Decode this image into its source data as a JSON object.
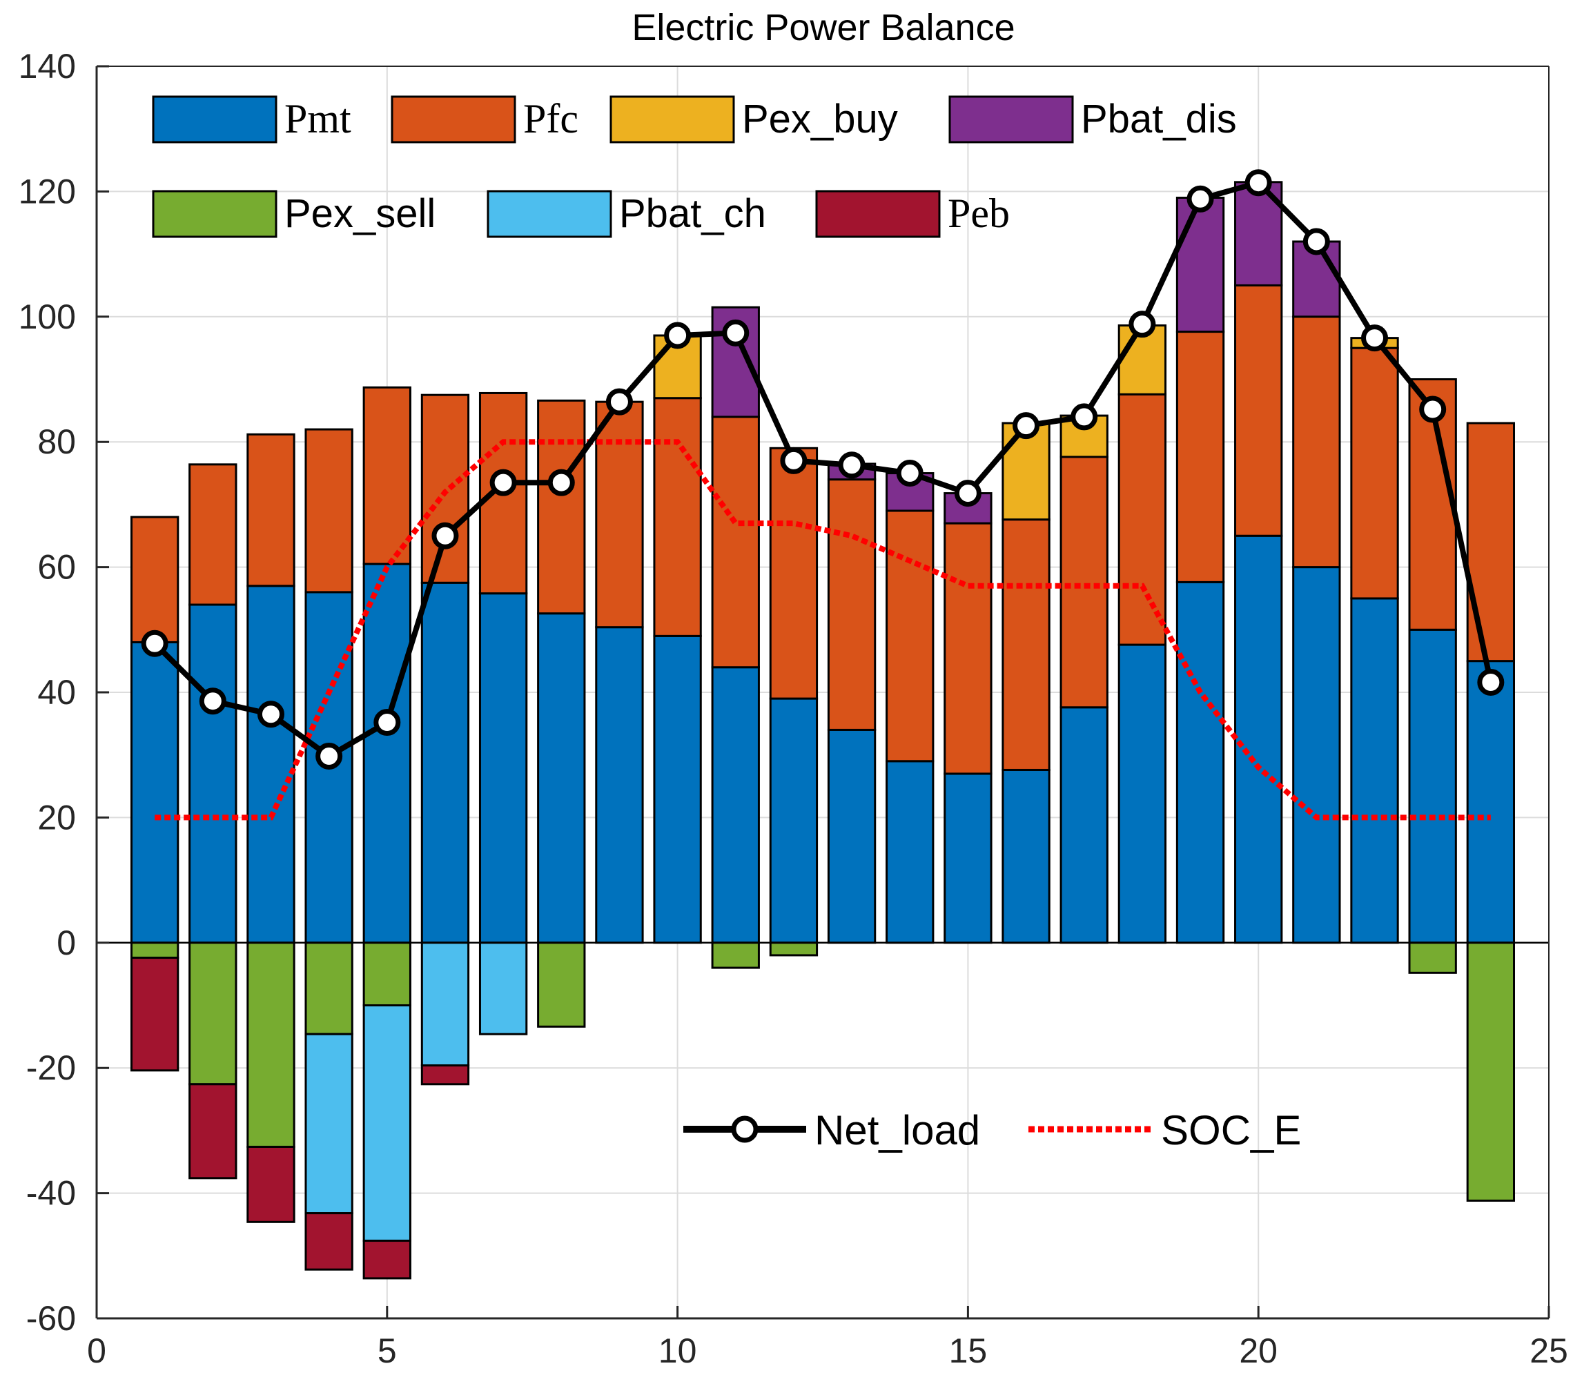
{
  "chart_data": {
    "type": "bar",
    "stacked": true,
    "title": "Electric Power Balance",
    "xlabel": "",
    "ylabel": "",
    "xlim": [
      0,
      25
    ],
    "ylim": [
      -60,
      140
    ],
    "xticks": [
      "0",
      "5",
      "10",
      "15",
      "20",
      "25"
    ],
    "yticks": [
      "-60",
      "-40",
      "-20",
      "0",
      "20",
      "40",
      "60",
      "80",
      "100",
      "120",
      "140"
    ],
    "grid": true,
    "categories": [
      1,
      2,
      3,
      4,
      5,
      6,
      7,
      8,
      9,
      10,
      11,
      12,
      13,
      14,
      15,
      16,
      17,
      18,
      19,
      20,
      21,
      22,
      23,
      24
    ],
    "positive_series": [
      {
        "name": "Pmt",
        "color": "#0072BD",
        "values": [
          48,
          54,
          57,
          56,
          60.5,
          57.5,
          55.8,
          52.6,
          50.4,
          49,
          44,
          39,
          34,
          29,
          27,
          27.6,
          37.6,
          47.6,
          57.6,
          65,
          60,
          55,
          50,
          45
        ]
      },
      {
        "name": "Pfc",
        "color": "#D95319",
        "values": [
          20,
          22.4,
          24.2,
          26,
          28.2,
          30,
          32,
          34,
          36,
          38,
          40,
          40,
          40,
          40,
          40,
          40,
          40,
          40,
          40,
          40,
          40,
          40,
          40,
          38
        ]
      },
      {
        "name": "Pex_buy",
        "color": "#EDB120",
        "values": [
          0,
          0,
          0,
          0,
          0,
          0,
          0,
          0,
          0,
          10,
          0,
          0,
          0,
          0,
          0,
          15.4,
          6.6,
          11,
          0,
          0,
          0,
          1.6,
          0,
          0
        ]
      },
      {
        "name": "Pbat_dis",
        "color": "#7E2F8E",
        "values": [
          0,
          0,
          0,
          0,
          0,
          0,
          0,
          0,
          0,
          0,
          17.5,
          0,
          2.5,
          6,
          4.8,
          0,
          0,
          0,
          21.4,
          16.5,
          12,
          0,
          0,
          0
        ]
      }
    ],
    "negative_series": [
      {
        "name": "Pex_sell",
        "color": "#77AC30",
        "values": [
          -2.4,
          -22.6,
          -32.6,
          -14.6,
          -10,
          0,
          0,
          -13.4,
          0,
          0,
          -4,
          -2,
          0,
          0,
          0,
          0,
          0,
          0,
          0,
          0,
          0,
          0,
          -4.8,
          -41.2
        ]
      },
      {
        "name": "Pbat_ch",
        "color": "#4DBEEE",
        "values": [
          0,
          0,
          0,
          -28.6,
          -37.6,
          -19.6,
          -14.6,
          0,
          0,
          0,
          0,
          0,
          0,
          0,
          0,
          0,
          0,
          0,
          0,
          0,
          0,
          0,
          0,
          0
        ]
      },
      {
        "name": "Peb",
        "color": "#A2142F",
        "values": [
          -18,
          -15,
          -12,
          -9,
          -6,
          -3,
          0,
          0,
          0,
          0,
          0,
          0,
          0,
          0,
          0,
          0,
          0,
          0,
          0,
          0,
          0,
          0,
          0,
          0
        ]
      }
    ],
    "lines": [
      {
        "name": "Net_load",
        "color": "#000000",
        "style": "solid",
        "marker": "circle",
        "values": [
          47.8,
          38.6,
          36.5,
          29.8,
          35.2,
          65,
          73.5,
          73.5,
          86.4,
          97,
          97.4,
          77,
          76.3,
          75,
          71.8,
          82.6,
          84,
          98.8,
          118.8,
          121.4,
          112,
          96.6,
          85.2,
          41.6
        ]
      },
      {
        "name": "SOC_E",
        "color": "#FF0000",
        "style": "dotted",
        "marker": "none",
        "values": [
          20,
          20,
          20,
          40,
          60,
          72,
          80,
          80,
          80,
          80,
          67,
          67,
          65,
          61,
          57,
          57,
          57,
          57,
          40,
          28,
          20,
          20,
          20,
          20
        ]
      }
    ],
    "legends": {
      "bars": "top-left, two rows",
      "lines": "bottom-center"
    }
  }
}
